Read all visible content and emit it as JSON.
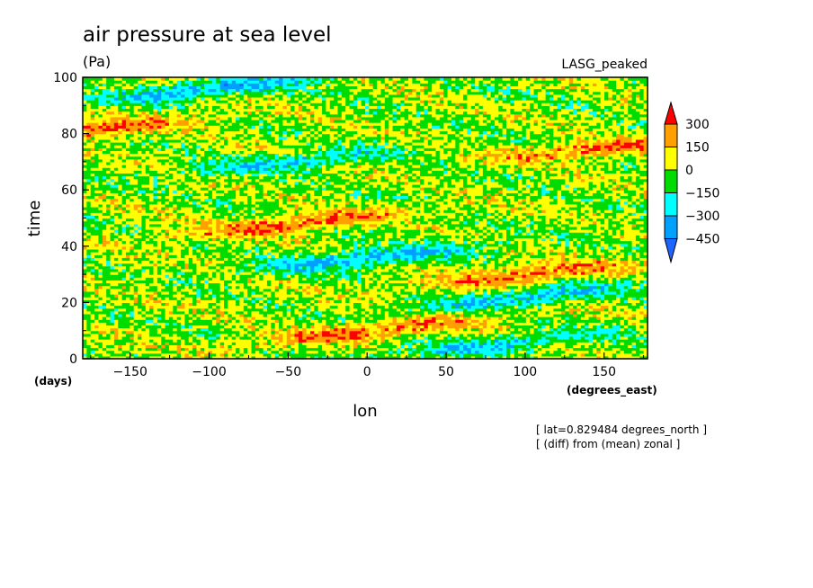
{
  "chart_data": {
    "type": "heatmap",
    "title": "air pressure at sea level",
    "units": "(Pa)",
    "experiment": "LASG_peaked",
    "xlabel": "lon",
    "ylabel": "time",
    "x_units": "(degrees_east)",
    "y_units": "(days)",
    "xlim": [
      -180,
      177.5
    ],
    "ylim": [
      0,
      100
    ],
    "x_ticks": [
      -150,
      -100,
      -50,
      0,
      50,
      100,
      150
    ],
    "y_ticks": [
      0,
      20,
      40,
      60,
      80,
      100
    ],
    "x_tick_labels": [
      "−150",
      "−100",
      "−50",
      "0",
      "50",
      "100",
      "150"
    ],
    "y_tick_labels": [
      "0",
      "20",
      "40",
      "60",
      "80",
      "100"
    ],
    "notes": [
      "[ lat=0.829484 degrees_north ]",
      "[ (diff) from (mean) zonal ]"
    ],
    "colorbar": {
      "levels": [
        -450,
        -300,
        -150,
        0,
        150,
        300
      ],
      "labels": [
        "300",
        "150",
        "0",
        "−150",
        "−300",
        "−450"
      ],
      "colors": [
        "#1e64ff",
        "#00a0ff",
        "#00ffff",
        "#00dc00",
        "#ffff00",
        "#ffa000",
        "#ff0000"
      ]
    },
    "field": {
      "description": "longitude-time Hovmoller of zonal anomaly with eastward-propagating bands",
      "positive_bands": [
        {
          "lon": -180,
          "day": 81,
          "slope_days_per_deg": 0.055,
          "amp": 340
        },
        {
          "lon": -50,
          "day": 48,
          "slope_days_per_deg": 0.055,
          "amp": 320
        },
        {
          "lon": 0,
          "day": 10,
          "slope_days_per_deg": 0.055,
          "amp": 300
        },
        {
          "lon": 100,
          "day": 30,
          "slope_days_per_deg": 0.055,
          "amp": 300
        },
        {
          "lon": 150,
          "day": 75,
          "slope_days_per_deg": 0.055,
          "amp": 300
        }
      ],
      "negative_bands": [
        {
          "lon": -100,
          "day": 96,
          "slope_days_per_deg": 0.055,
          "amp": -360
        },
        {
          "lon": -50,
          "day": 70,
          "slope_days_per_deg": 0.055,
          "amp": -260
        },
        {
          "lon": 0,
          "day": 36,
          "slope_days_per_deg": 0.055,
          "amp": -360
        },
        {
          "lon": 100,
          "day": 22,
          "slope_days_per_deg": 0.055,
          "amp": -320
        },
        {
          "lon": 80,
          "day": 5,
          "slope_days_per_deg": 0.055,
          "amp": -260
        }
      ]
    }
  }
}
